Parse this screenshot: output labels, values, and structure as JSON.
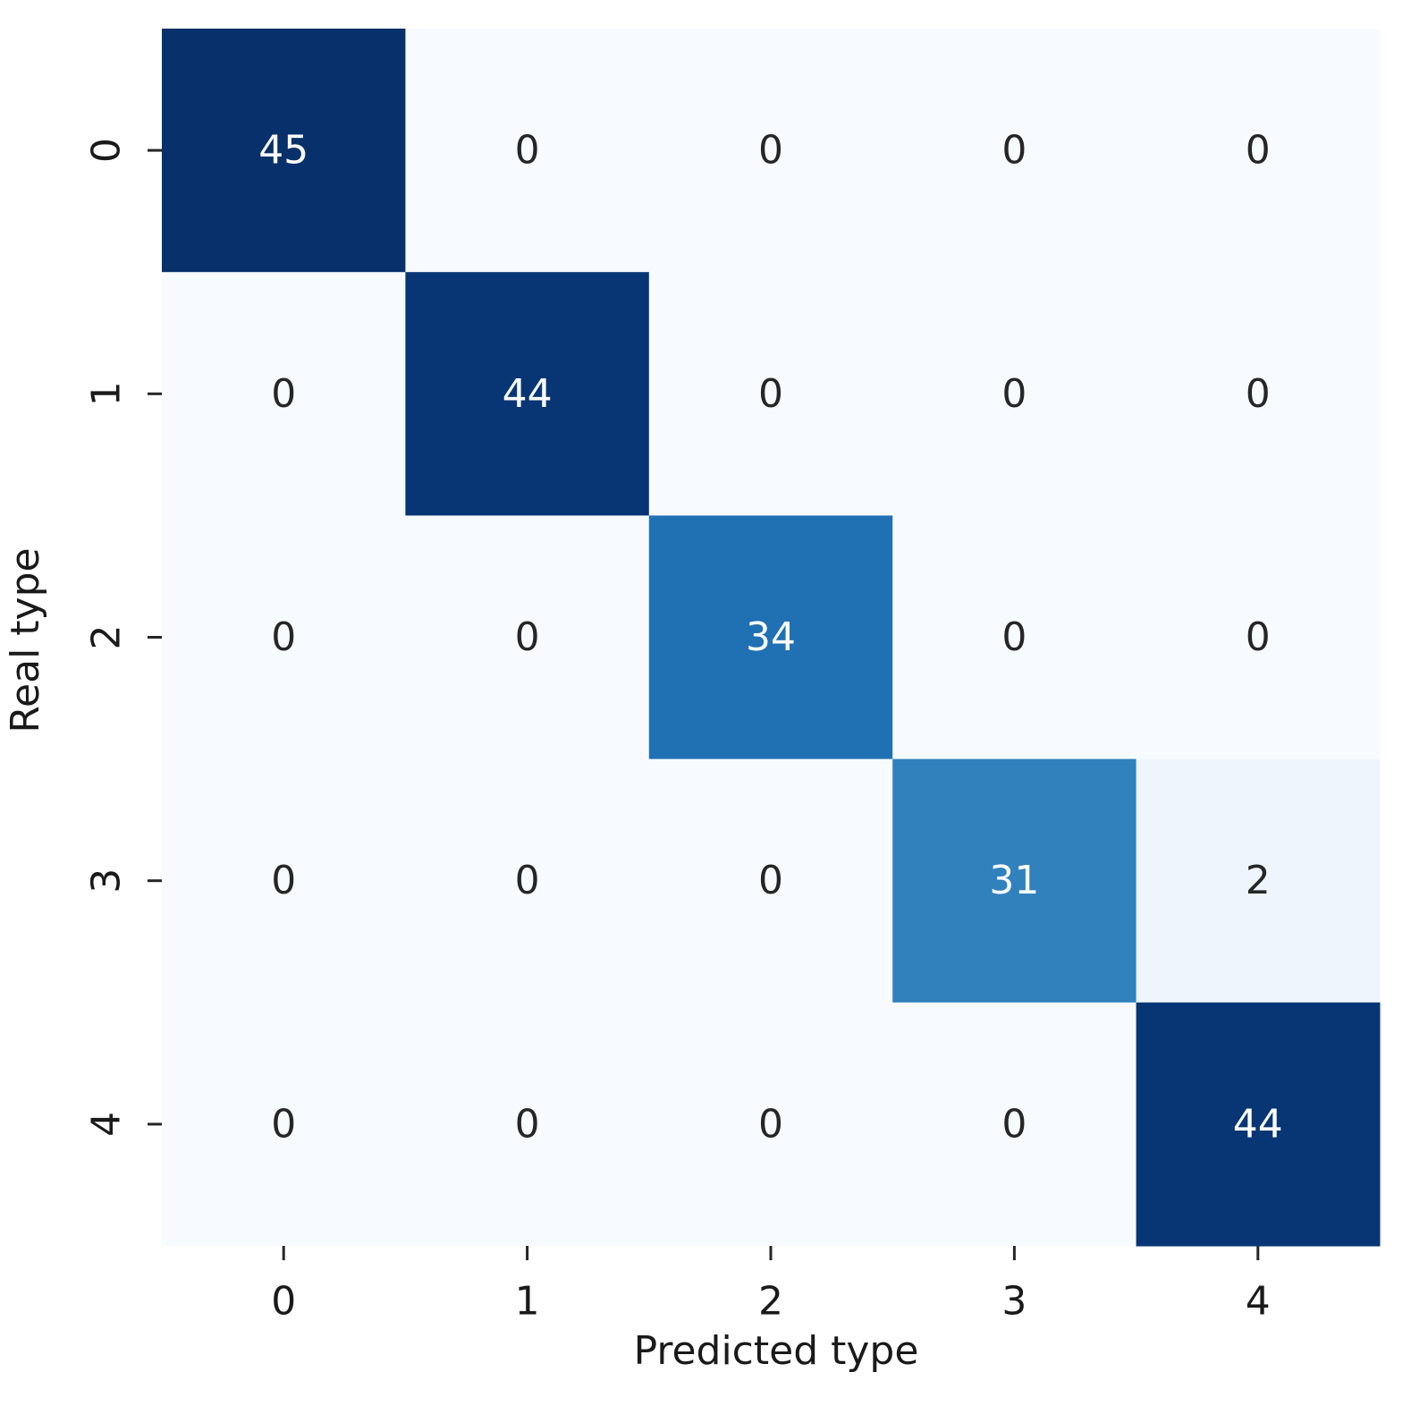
{
  "chart_data": {
    "type": "heatmap",
    "x_categories": [
      "0",
      "1",
      "2",
      "3",
      "4"
    ],
    "y_categories": [
      "0",
      "1",
      "2",
      "3",
      "4"
    ],
    "xlabel": "Predicted type",
    "ylabel": "Real type",
    "matrix": [
      [
        45,
        0,
        0,
        0,
        0
      ],
      [
        0,
        44,
        0,
        0,
        0
      ],
      [
        0,
        0,
        34,
        0,
        0
      ],
      [
        0,
        0,
        0,
        31,
        2
      ],
      [
        0,
        0,
        0,
        0,
        44
      ]
    ],
    "value_range": [
      0,
      45
    ],
    "colormap": "Blues",
    "colors": {
      "low": "#f7fbff",
      "high": "#08306b",
      "text_dark": "#262626",
      "text_light": "#ffffff"
    },
    "grid": false,
    "colorbar": false
  }
}
